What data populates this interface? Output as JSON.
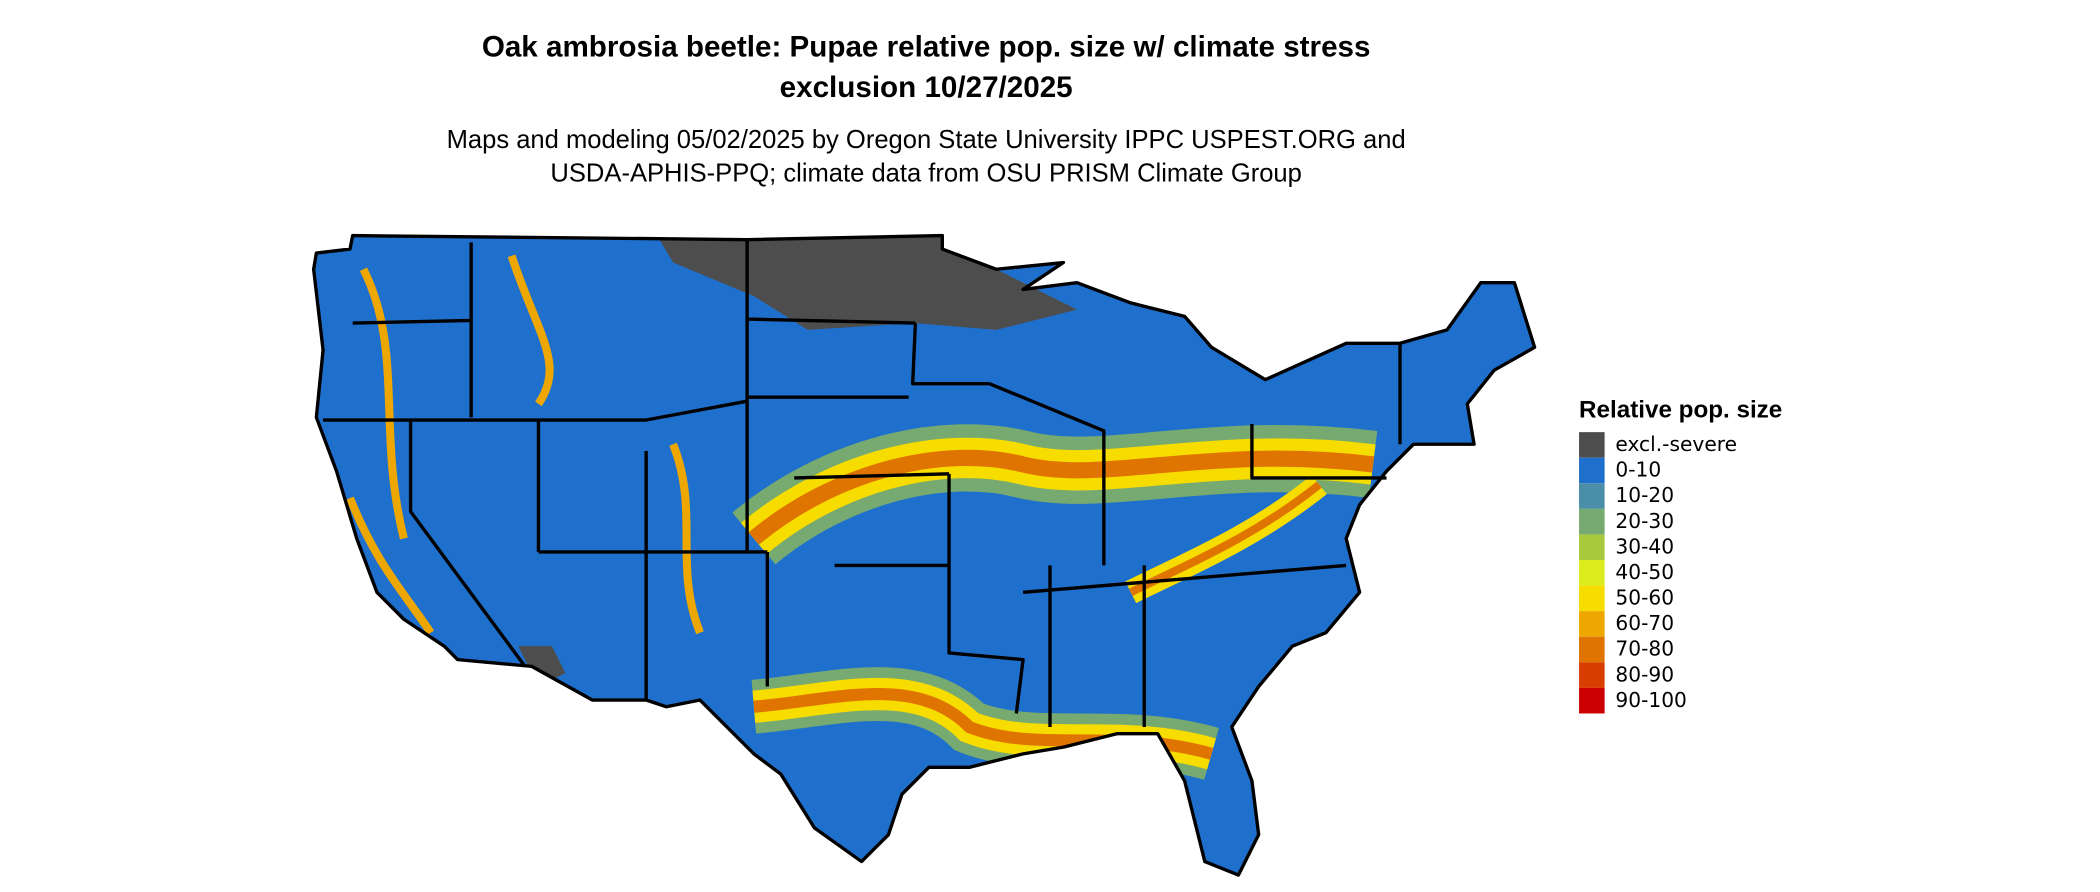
{
  "title": [
    "Oak ambrosia beetle: Pupae relative pop. size w/ climate stress",
    "exclusion 10/27/2025"
  ],
  "subtitle": [
    "Maps and modeling 05/02/2025 by Oregon State University IPPC USPEST.ORG and",
    "USDA-APHIS-PPQ; climate data from OSU PRISM Climate Group"
  ],
  "legend": {
    "title": "Relative pop. size",
    "items": [
      {
        "label": "excl.-severe",
        "color": "#4d4d4d"
      },
      {
        "label": "0-10",
        "color": "#1f70cc"
      },
      {
        "label": "10-20",
        "color": "#4a8ea8"
      },
      {
        "label": "20-30",
        "color": "#76aa70"
      },
      {
        "label": "30-40",
        "color": "#a8c93c"
      },
      {
        "label": "40-50",
        "color": "#dcec1c"
      },
      {
        "label": "50-60",
        "color": "#f7dc00"
      },
      {
        "label": "60-70",
        "color": "#eea700"
      },
      {
        "label": "70-80",
        "color": "#e07400"
      },
      {
        "label": "80-90",
        "color": "#d93d00"
      },
      {
        "label": "90-100",
        "color": "#cc0000"
      }
    ]
  }
}
